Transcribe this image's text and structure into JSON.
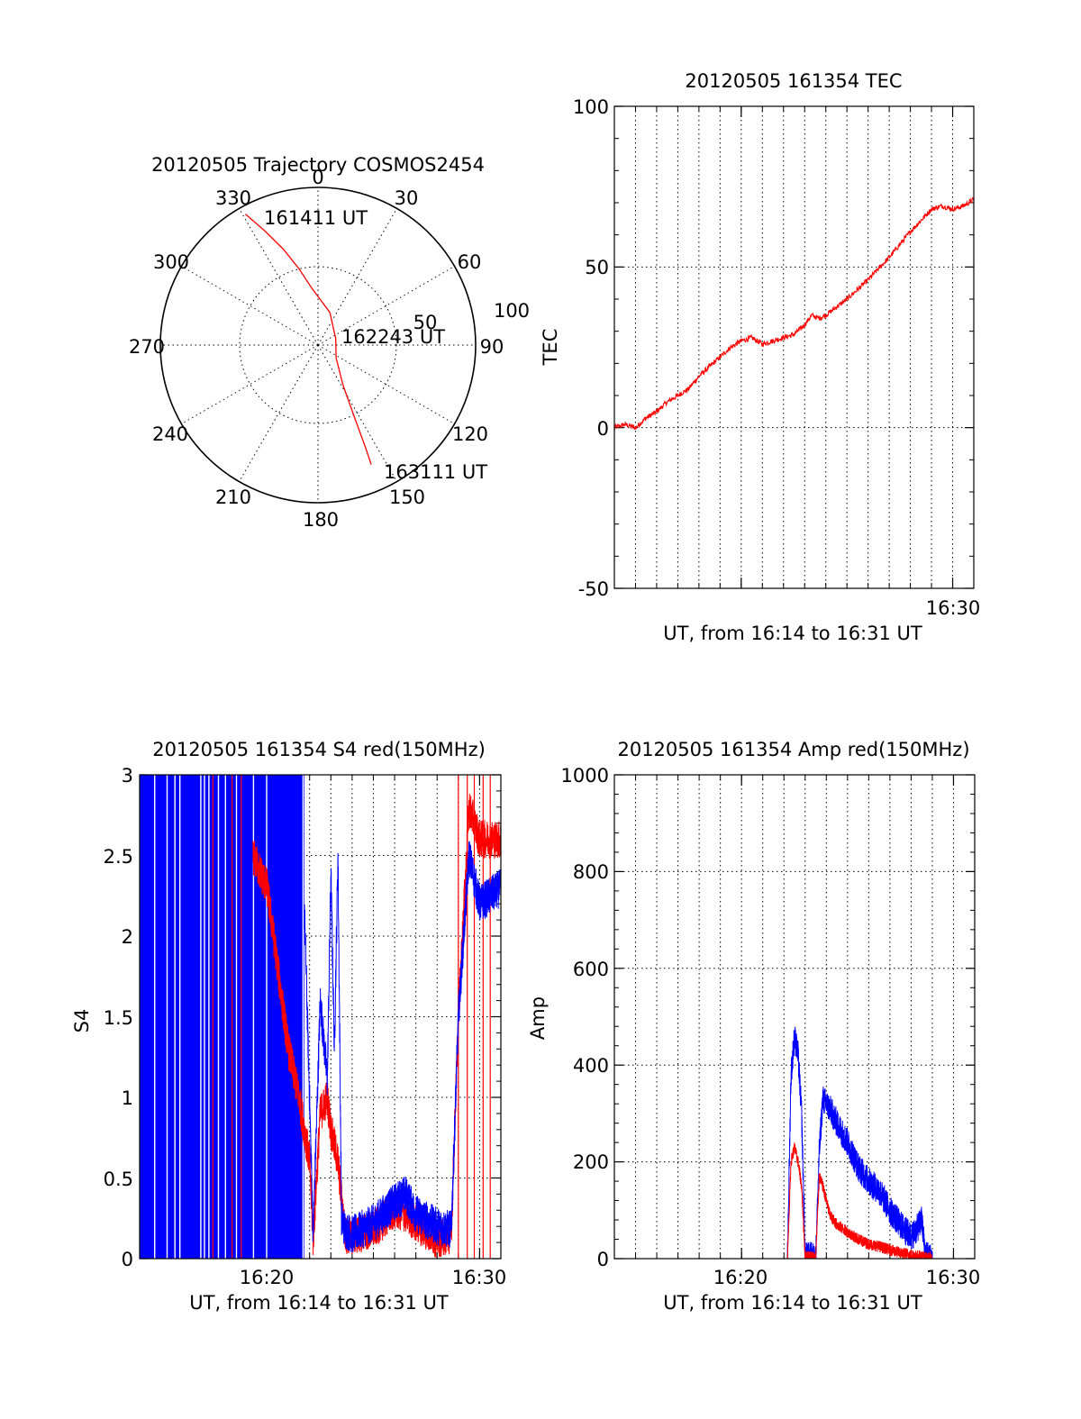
{
  "chart_data": [
    {
      "type": "polar",
      "title": "20120505 Trajectory COSMOS2454",
      "azimuth_labels": [
        "0",
        "30",
        "60",
        "90",
        "120",
        "150",
        "180",
        "210",
        "240",
        "270",
        "300",
        "330"
      ],
      "radius_labels": [
        "50",
        "100"
      ],
      "annotations": [
        "161411 UT",
        "162243 UT",
        "163111 UT"
      ],
      "grid": true,
      "series": [
        {
          "color": "#ff0000",
          "points": [
            {
              "az": 331,
              "zenith": 95
            },
            {
              "az": 335,
              "zenith": 80
            },
            {
              "az": 340,
              "zenith": 65
            },
            {
              "az": 346,
              "zenith": 50
            },
            {
              "az": 354,
              "zenith": 36
            },
            {
              "az": 20,
              "zenith": 22
            },
            {
              "az": 70,
              "zenith": 12
            },
            {
              "az": 125,
              "zenith": 14
            },
            {
              "az": 148,
              "zenith": 30
            },
            {
              "az": 153,
              "zenith": 50
            },
            {
              "az": 155,
              "zenith": 70
            },
            {
              "az": 156,
              "zenith": 83
            }
          ]
        }
      ]
    },
    {
      "type": "line",
      "title": "20120505 161354 TEC",
      "ylabel": "TEC",
      "xlabel": "UT, from 16:14 to 16:31 UT",
      "xlim": [
        "16:14",
        "16:31"
      ],
      "ylim": [
        -50,
        100
      ],
      "y_ticks": [
        "100",
        "50",
        "0",
        "-50"
      ],
      "x_tick_labels": [
        "16:30"
      ],
      "grid": true,
      "series": [
        {
          "color": "#ff0000",
          "x": [
            "16:14:00",
            "16:14:30",
            "16:15:00",
            "16:15:30",
            "16:16:00",
            "16:16:30",
            "16:17:00",
            "16:17:30",
            "16:18:00",
            "16:18:30",
            "16:19:00",
            "16:19:30",
            "16:20:00",
            "16:20:30",
            "16:21:00",
            "16:21:30",
            "16:22:00",
            "16:22:30",
            "16:23:00",
            "16:23:20",
            "16:23:40",
            "16:24:00",
            "16:25:00",
            "16:26:00",
            "16:27:00",
            "16:28:00",
            "16:29:00",
            "16:29:30",
            "16:30:00",
            "16:30:30",
            "16:31:00"
          ],
          "values": [
            0,
            1,
            0,
            3,
            5,
            8,
            10,
            12,
            16,
            19,
            22,
            25,
            27,
            28,
            26,
            27,
            28,
            29,
            32,
            35,
            34,
            35,
            40,
            46,
            53,
            61,
            68,
            69,
            68,
            69,
            71
          ],
          "noise": 0.8
        }
      ]
    },
    {
      "type": "line",
      "title": "20120505 161354 S4 red(150MHz)",
      "ylabel": "S4",
      "xlabel": "UT, from 16:14 to 16:31 UT",
      "xlim": [
        "16:14",
        "16:31"
      ],
      "ylim": [
        0,
        3
      ],
      "y_ticks": [
        "3",
        "2.5",
        "2",
        "1.5",
        "1",
        "0.5",
        "0"
      ],
      "x_tick_labels": [
        "16:20",
        "16:30"
      ],
      "grid": true,
      "series": [
        {
          "color": "#0000ff",
          "x": [
            "16:14:00",
            "16:21:40",
            "16:21:50",
            "16:22:10",
            "16:22:30",
            "16:22:50",
            "16:23:00",
            "16:23:10",
            "16:23:20",
            "16:23:30",
            "16:23:40",
            "16:24:00",
            "16:25:00",
            "16:26:00",
            "16:26:30",
            "16:27:00",
            "16:28:00",
            "16:28:40",
            "16:29:00",
            "16:29:30",
            "16:30:00",
            "16:31:00"
          ],
          "values": [
            3.0,
            2.6,
            1.8,
            0.15,
            1.6,
            1.1,
            2.4,
            1.3,
            2.5,
            0.25,
            0.18,
            0.15,
            0.22,
            0.35,
            0.4,
            0.28,
            0.2,
            0.18,
            1.5,
            2.5,
            2.2,
            2.3
          ],
          "noise": 0.12
        },
        {
          "color": "#ff0000",
          "x": [
            "16:14:00",
            "16:19:20",
            "16:20:00",
            "16:20:30",
            "16:21:00",
            "16:21:30",
            "16:22:00",
            "16:22:10",
            "16:22:30",
            "16:22:50",
            "16:23:00",
            "16:23:20",
            "16:23:40",
            "16:24:00",
            "16:25:00",
            "16:26:00",
            "16:26:30",
            "16:27:00",
            "16:28:00",
            "16:28:40",
            "16:29:00",
            "16:29:30",
            "16:30:00",
            "16:31:00"
          ],
          "values": [
            0.0,
            2.5,
            2.3,
            1.8,
            1.3,
            1.0,
            0.6,
            0.12,
            0.9,
            1.0,
            0.8,
            0.6,
            0.15,
            0.14,
            0.18,
            0.3,
            0.28,
            0.22,
            0.12,
            0.15,
            1.5,
            2.8,
            2.6,
            2.6
          ],
          "noise": 0.12
        }
      ]
    },
    {
      "type": "line",
      "title": "20120505 161354 Amp red(150MHz)",
      "ylabel": "Amp",
      "xlabel": "UT, from 16:14 to 16:31 UT",
      "xlim": [
        "16:14",
        "16:31"
      ],
      "ylim": [
        0,
        1000
      ],
      "y_ticks": [
        "1000",
        "800",
        "600",
        "400",
        "200",
        "0"
      ],
      "x_tick_labels": [
        "16:20",
        "16:30"
      ],
      "grid": true,
      "series": [
        {
          "color": "#0000ff",
          "x": [
            "16:14:00",
            "16:22:10",
            "16:22:20",
            "16:22:30",
            "16:22:40",
            "16:22:50",
            "16:23:00",
            "16:23:20",
            "16:23:30",
            "16:23:40",
            "16:23:50",
            "16:24:10",
            "16:24:30",
            "16:25:00",
            "16:25:30",
            "16:26:00",
            "16:26:30",
            "16:27:00",
            "16:27:30",
            "16:28:00",
            "16:28:15",
            "16:28:30",
            "16:28:40",
            "16:29:00",
            "16:31:00"
          ],
          "values": [
            0,
            0,
            380,
            460,
            420,
            300,
            5,
            5,
            2,
            220,
            330,
            310,
            280,
            240,
            190,
            160,
            140,
            100,
            70,
            45,
            60,
            80,
            10,
            0,
            0
          ],
          "noise": 30
        },
        {
          "color": "#ff0000",
          "x": [
            "16:14:00",
            "16:22:10",
            "16:22:20",
            "16:22:30",
            "16:22:40",
            "16:22:50",
            "16:23:00",
            "16:23:20",
            "16:23:30",
            "16:23:40",
            "16:23:50",
            "16:24:10",
            "16:24:30",
            "16:25:00",
            "16:25:30",
            "16:26:00",
            "16:26:30",
            "16:27:00",
            "16:27:30",
            "16:28:00",
            "16:28:30",
            "16:28:40",
            "16:29:00",
            "16:31:00"
          ],
          "values": [
            0,
            0,
            200,
            230,
            200,
            150,
            5,
            5,
            2,
            170,
            150,
            90,
            70,
            55,
            40,
            30,
            25,
            18,
            12,
            8,
            5,
            2,
            0,
            0
          ],
          "noise": 12
        }
      ]
    }
  ]
}
